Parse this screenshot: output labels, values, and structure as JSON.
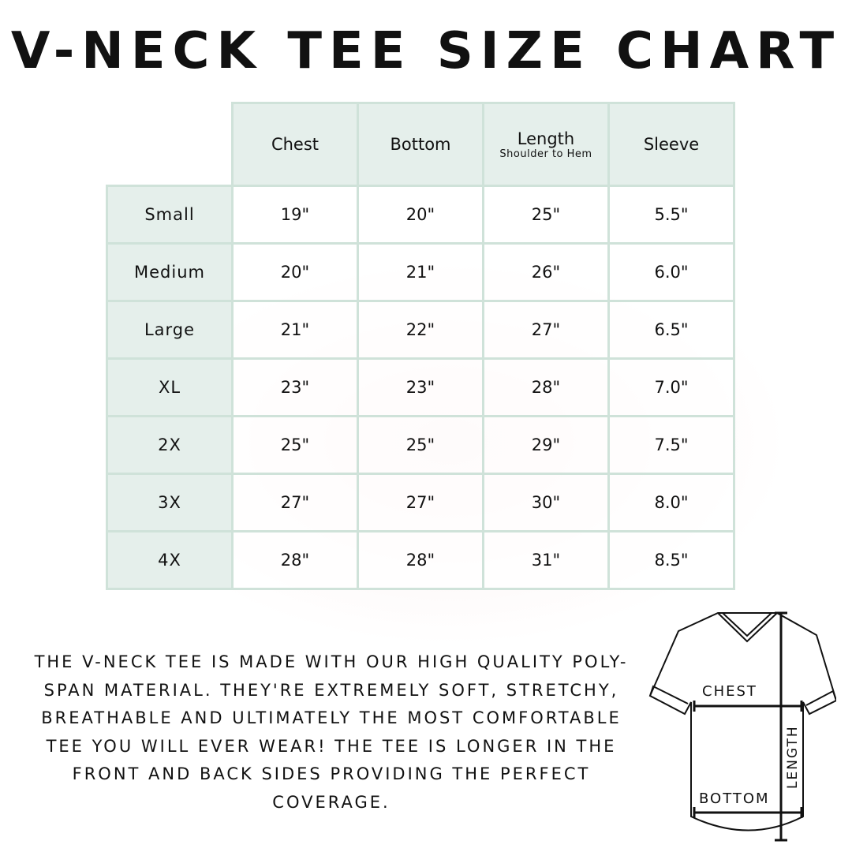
{
  "title": "V-NECK TEE SIZE CHART",
  "table": {
    "headers": [
      {
        "label": "Chest",
        "sub": ""
      },
      {
        "label": "Bottom",
        "sub": ""
      },
      {
        "label": "Length",
        "sub": "Shoulder to Hem"
      },
      {
        "label": "Sleeve",
        "sub": ""
      }
    ],
    "rows": [
      {
        "size": "Small",
        "values": [
          "19\"",
          "20\"",
          "25\"",
          "5.5\""
        ]
      },
      {
        "size": "Medium",
        "values": [
          "20\"",
          "21\"",
          "26\"",
          "6.0\""
        ]
      },
      {
        "size": "Large",
        "values": [
          "21\"",
          "22\"",
          "27\"",
          "6.5\""
        ]
      },
      {
        "size": "XL",
        "values": [
          "23\"",
          "23\"",
          "28\"",
          "7.0\""
        ]
      },
      {
        "size": "2X",
        "values": [
          "25\"",
          "25\"",
          "29\"",
          "7.5\""
        ]
      },
      {
        "size": "3X",
        "values": [
          "27\"",
          "27\"",
          "30\"",
          "8.0\""
        ]
      },
      {
        "size": "4X",
        "values": [
          "28\"",
          "28\"",
          "31\"",
          "8.5\""
        ]
      }
    ]
  },
  "description": "The V-neck tee is made with our high quality poly-span material. They're extremely soft, stretchy, breathable and ultimately the most comfortable tee you will ever wear! The tee is longer in the front and back sides providing the perfect coverage.",
  "diagram": {
    "chest": "CHEST",
    "bottom": "BOTTOM",
    "length": "LENGTH"
  },
  "colors": {
    "border": "#cfe2d9",
    "header_fill": "#e5efeb"
  }
}
